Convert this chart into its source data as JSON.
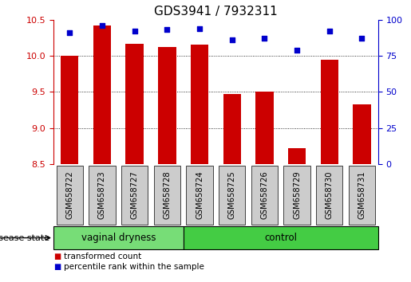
{
  "title": "GDS3941 / 7932311",
  "samples": [
    "GSM658722",
    "GSM658723",
    "GSM658727",
    "GSM658728",
    "GSM658724",
    "GSM658725",
    "GSM658726",
    "GSM658729",
    "GSM658730",
    "GSM658731"
  ],
  "bar_values": [
    10.0,
    10.42,
    10.17,
    10.12,
    10.16,
    9.47,
    9.5,
    8.72,
    9.95,
    9.33
  ],
  "percentile_values": [
    91,
    96,
    92,
    93,
    94,
    86,
    87,
    79,
    92,
    87
  ],
  "bar_color": "#cc0000",
  "dot_color": "#0000cc",
  "ylim_left": [
    8.5,
    10.5
  ],
  "ylim_right": [
    0,
    100
  ],
  "yticks_left": [
    8.5,
    9.0,
    9.5,
    10.0,
    10.5
  ],
  "yticks_right": [
    0,
    25,
    50,
    75,
    100
  ],
  "group1_label": "vaginal dryness",
  "group2_label": "control",
  "group1_count": 4,
  "group2_count": 6,
  "group1_color": "#77dd77",
  "group2_color": "#44cc44",
  "tick_bg": "#cccccc",
  "disease_state_label": "disease state",
  "legend_bar_label": "transformed count",
  "legend_dot_label": "percentile rank within the sample",
  "bar_width": 0.55,
  "left_axis_color": "#cc0000",
  "right_axis_color": "#0000cc",
  "title_fontsize": 11
}
